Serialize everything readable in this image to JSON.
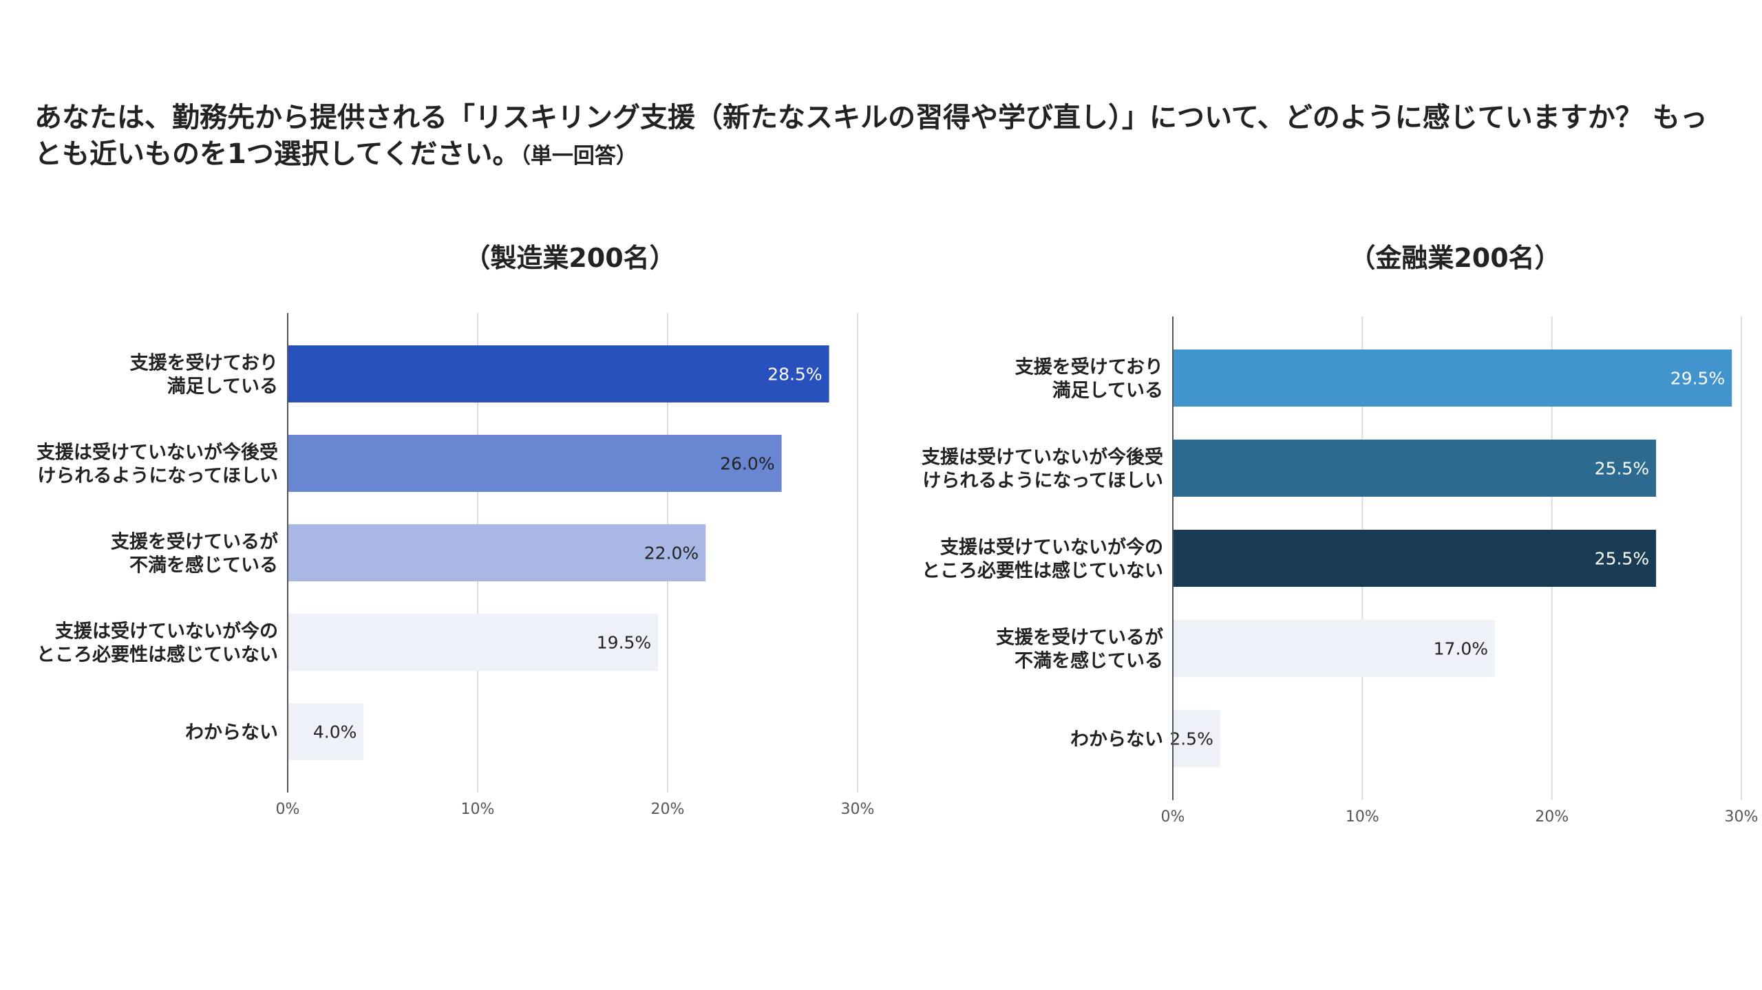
{
  "question": {
    "text": "あなたは、勤務先から提供される「リスキリング支援（新たなスキルの習得や学び直し）」について、どのように感じていますか？ もっとも近いものを1つ選択してください。",
    "note": "（単一回答）"
  },
  "chart_data": [
    {
      "type": "bar",
      "orientation": "horizontal",
      "title": "（製造業200名）",
      "categories": [
        [
          "支援を受けており",
          "満足している"
        ],
        [
          "支援は受けていないが今後受",
          "けられるようになってほしい"
        ],
        [
          "支援を受けているが",
          "不満を感じている"
        ],
        [
          "支援は受けていないが今の",
          "ところ必要性は感じていない"
        ],
        [
          "わからない"
        ]
      ],
      "values": [
        28.5,
        26.0,
        22.0,
        19.5,
        4.0
      ],
      "data_labels": [
        "28.5%",
        "26.0%",
        "22.0%",
        "19.5%",
        "4.0%"
      ],
      "colors": [
        "#2951bd",
        "#6886d1",
        "#a8b7e3",
        "#eef2f8",
        "#eef2f8"
      ],
      "label_colors": [
        "#ffffff",
        "#222222",
        "#222222",
        "#222222",
        "#222222"
      ],
      "xlim": [
        0,
        30
      ],
      "ticks": [
        0,
        10,
        20,
        30
      ],
      "tick_labels": [
        "0%",
        "10%",
        "20%",
        "30%"
      ],
      "grid": true
    },
    {
      "type": "bar",
      "orientation": "horizontal",
      "title": "（金融業200名）",
      "categories": [
        [
          "支援を受けており",
          "満足している"
        ],
        [
          "支援は受けていないが今後受",
          "けられるようになってほしい"
        ],
        [
          "支援は受けていないが今の",
          "ところ必要性は感じていない"
        ],
        [
          "支援を受けているが",
          "不満を感じている"
        ],
        [
          "わからない"
        ]
      ],
      "values": [
        29.5,
        25.5,
        25.5,
        17.0,
        2.5
      ],
      "data_labels": [
        "29.5%",
        "25.5%",
        "25.5%",
        "17.0%",
        "2.5%"
      ],
      "colors": [
        "#4294cf",
        "#2d6a8f",
        "#1a3b54",
        "#eef2f8",
        "#eef2f8"
      ],
      "label_colors": [
        "#ffffff",
        "#ffffff",
        "#ffffff",
        "#222222",
        "#222222"
      ],
      "xlim": [
        0,
        30
      ],
      "ticks": [
        0,
        10,
        20,
        30
      ],
      "tick_labels": [
        "0%",
        "10%",
        "20%",
        "30%"
      ],
      "grid": true
    }
  ]
}
